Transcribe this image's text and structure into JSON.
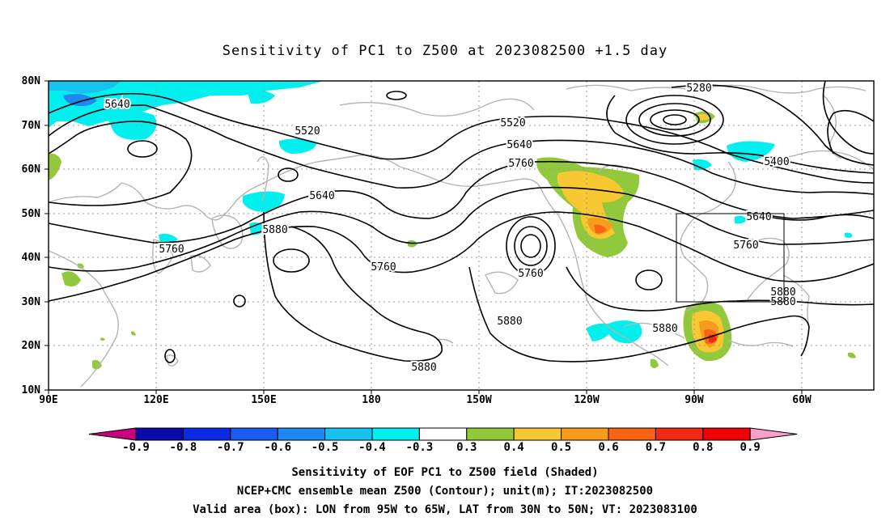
{
  "title": "Sensitivity of PC1 to Z500 at 2023082500 +1.5 day",
  "lat_labels": [
    "80N",
    "70N",
    "60N",
    "50N",
    "40N",
    "30N",
    "20N",
    "10N"
  ],
  "lon_labels": [
    "90E",
    "120E",
    "150E",
    "180",
    "150W",
    "120W",
    "90W",
    "60W"
  ],
  "contour_labels": [
    "5640",
    "5520",
    "5520",
    "5640",
    "5760",
    "5640",
    "5760",
    "5880",
    "5760",
    "5760",
    "5880",
    "5880",
    "5880",
    "5280",
    "5400",
    "5640",
    "5760",
    "5880",
    "5880"
  ],
  "colorbar": {
    "tick_labels": [
      "-0.9",
      "-0.8",
      "-0.7",
      "-0.6",
      "-0.5",
      "-0.4",
      "-0.3",
      "0.3",
      "0.4",
      "0.5",
      "0.6",
      "0.7",
      "0.8",
      "0.9"
    ],
    "colors": [
      "#c8007e",
      "#0a0aa8",
      "#0c2be6",
      "#1a5cf0",
      "#1e88f0",
      "#17c2f0",
      "#00f0f0",
      "#ffffff",
      "#92c83c",
      "#f8c832",
      "#f89c1e",
      "#f86414",
      "#f02814",
      "#f00000",
      "#f8a0c8"
    ]
  },
  "footer": {
    "line1": "Sensitivity of EOF PC1 to Z500 field (Shaded)",
    "line2": "NCEP+CMC ensemble mean Z500 (Contour); unit(m); IT:2023082500",
    "line3": "Valid area (box): LON from 95W to 65W, LAT from 30N to 50N; VT: 2023083100"
  },
  "valid_box": {
    "lon_west": "95W",
    "lon_east": "65W",
    "lat_south": "30N",
    "lat_north": "50N"
  },
  "colors": {
    "coast": "#b4b4b4",
    "contour": "#000000",
    "grid": "#9a9a9a"
  }
}
